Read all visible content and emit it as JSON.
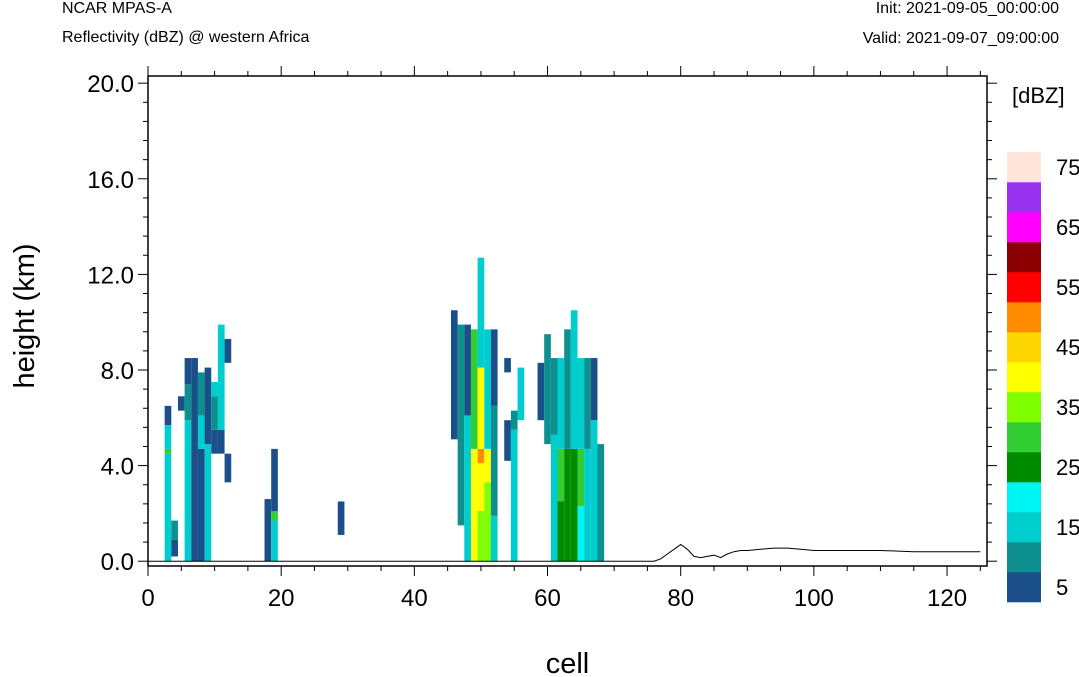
{
  "header": {
    "left_title": "NCAR MPAS-A",
    "left_subtitle": "Reflectivity (dBZ) @ western Africa",
    "right_init": "Init: 2021-09-05_00:00:00",
    "right_valid": "Valid: 2021-09-07_09:00:00"
  },
  "chart_data": {
    "type": "heatmap",
    "xlabel": "cell",
    "ylabel": "height (km)",
    "xlim": [
      0,
      126
    ],
    "ylim": [
      -0.2,
      20.3
    ],
    "xticks": [
      0,
      20,
      40,
      60,
      80,
      100,
      120
    ],
    "xtick_labels": [
      "0",
      "20",
      "40",
      "60",
      "80",
      "100",
      "120"
    ],
    "yticks": [
      0,
      4,
      8,
      12,
      16,
      20
    ],
    "ytick_labels": [
      "0.0",
      "4.0",
      "8.0",
      "12.0",
      "16.0",
      "20.0"
    ],
    "colorbar": {
      "units": "[dBZ]",
      "levels": [
        5,
        10,
        15,
        20,
        25,
        30,
        35,
        40,
        45,
        50,
        55,
        60,
        65,
        70,
        75
      ],
      "labels": [
        "5",
        "15",
        "25",
        "35",
        "45",
        "55",
        "65",
        "75"
      ],
      "colors": [
        "#1a4f8a",
        "#0e8f8f",
        "#00cdcd",
        "#00f5f5",
        "#008b00",
        "#32cd32",
        "#7fff00",
        "#ffff00",
        "#ffd700",
        "#ff8c00",
        "#ff0000",
        "#8b0000",
        "#ff00ff",
        "#9932ee",
        "#ffe4d9"
      ]
    },
    "columns": [
      {
        "x": 3,
        "segments": [
          [
            0,
            4.5,
            15
          ],
          [
            4.5,
            4.7,
            30
          ],
          [
            4.7,
            5.7,
            15
          ],
          [
            5.7,
            6.5,
            5
          ]
        ]
      },
      {
        "x": 4,
        "segments": [
          [
            0.2,
            0.9,
            5
          ],
          [
            0.9,
            1.7,
            10
          ]
        ]
      },
      {
        "x": 5,
        "segments": [
          [
            6.3,
            6.9,
            5
          ]
        ]
      },
      {
        "x": 6,
        "segments": [
          [
            0,
            5.9,
            15
          ],
          [
            5.9,
            7.4,
            10
          ],
          [
            7.4,
            8.5,
            5
          ]
        ]
      },
      {
        "x": 7,
        "segments": [
          [
            0,
            4.9,
            5
          ],
          [
            4.9,
            8.5,
            5
          ]
        ]
      },
      {
        "x": 8,
        "segments": [
          [
            0,
            4.7,
            5
          ],
          [
            4.7,
            6.1,
            15
          ],
          [
            6.1,
            7.9,
            10
          ]
        ]
      },
      {
        "x": 9,
        "segments": [
          [
            0,
            4.9,
            15
          ],
          [
            4.9,
            8.1,
            5
          ]
        ]
      },
      {
        "x": 10,
        "segments": [
          [
            4.5,
            5.5,
            5
          ],
          [
            5.5,
            6.9,
            10
          ],
          [
            6.9,
            7.5,
            15
          ]
        ]
      },
      {
        "x": 11,
        "segments": [
          [
            4.5,
            5.5,
            5
          ],
          [
            5.5,
            9.9,
            15
          ]
        ]
      },
      {
        "x": 12,
        "segments": [
          [
            3.3,
            4.5,
            5
          ],
          [
            8.3,
            9.3,
            5
          ]
        ]
      },
      {
        "x": 18,
        "segments": [
          [
            0,
            2.6,
            5
          ]
        ]
      },
      {
        "x": 19,
        "segments": [
          [
            0,
            1.7,
            15
          ],
          [
            1.7,
            2.1,
            30
          ],
          [
            2.1,
            4.7,
            5
          ]
        ]
      },
      {
        "x": 29,
        "segments": [
          [
            1.1,
            2.5,
            5
          ]
        ]
      },
      {
        "x": 46,
        "segments": [
          [
            5.1,
            10.5,
            5
          ]
        ]
      },
      {
        "x": 47,
        "segments": [
          [
            1.5,
            4.9,
            10
          ],
          [
            4.9,
            9.9,
            10
          ]
        ]
      },
      {
        "x": 48,
        "segments": [
          [
            0,
            6.1,
            15
          ],
          [
            6.1,
            9.9,
            5
          ]
        ]
      },
      {
        "x": 49,
        "segments": [
          [
            0,
            3.3,
            40
          ],
          [
            3.3,
            4.7,
            40
          ],
          [
            4.7,
            9.7,
            30
          ]
        ]
      },
      {
        "x": 50,
        "segments": [
          [
            0,
            2.1,
            35
          ],
          [
            2.1,
            4.1,
            40
          ],
          [
            4.1,
            4.7,
            50
          ],
          [
            4.7,
            8.1,
            40
          ],
          [
            8.1,
            12.7,
            15
          ]
        ]
      },
      {
        "x": 51,
        "segments": [
          [
            0,
            3.3,
            35
          ],
          [
            3.3,
            4.7,
            40
          ],
          [
            4.7,
            9.7,
            15
          ]
        ]
      },
      {
        "x": 52,
        "segments": [
          [
            0,
            1.9,
            15
          ],
          [
            1.9,
            6.5,
            10
          ],
          [
            6.5,
            9.7,
            5
          ]
        ]
      },
      {
        "x": 54,
        "segments": [
          [
            4.2,
            5.9,
            5
          ],
          [
            7.9,
            8.5,
            5
          ]
        ]
      },
      {
        "x": 55,
        "segments": [
          [
            0,
            5.5,
            15
          ],
          [
            5.5,
            6.3,
            10
          ]
        ]
      },
      {
        "x": 56,
        "segments": [
          [
            5.9,
            8.1,
            15
          ]
        ]
      },
      {
        "x": 59,
        "segments": [
          [
            5.9,
            8.3,
            5
          ]
        ]
      },
      {
        "x": 60,
        "segments": [
          [
            4.9,
            9.5,
            10
          ]
        ]
      },
      {
        "x": 61,
        "segments": [
          [
            0,
            5.3,
            15
          ],
          [
            5.3,
            8.5,
            10
          ]
        ]
      },
      {
        "x": 62,
        "segments": [
          [
            0,
            2.5,
            25
          ],
          [
            2.5,
            4.7,
            30
          ],
          [
            4.7,
            8.5,
            15
          ]
        ]
      },
      {
        "x": 63,
        "segments": [
          [
            0,
            4.7,
            25
          ],
          [
            4.7,
            9.7,
            10
          ]
        ]
      },
      {
        "x": 64,
        "segments": [
          [
            0,
            4.7,
            25
          ],
          [
            4.7,
            10.5,
            15
          ]
        ]
      },
      {
        "x": 65,
        "segments": [
          [
            0,
            2.3,
            20
          ],
          [
            2.3,
            4.7,
            30
          ],
          [
            4.7,
            8.5,
            15
          ]
        ]
      },
      {
        "x": 66,
        "segments": [
          [
            0,
            4.7,
            15
          ],
          [
            4.7,
            8.5,
            10
          ]
        ]
      },
      {
        "x": 67,
        "segments": [
          [
            0,
            5.9,
            15
          ],
          [
            5.9,
            8.5,
            5
          ]
        ]
      },
      {
        "x": 68,
        "segments": [
          [
            0,
            4.9,
            10
          ]
        ]
      }
    ],
    "terrain": {
      "x": [
        0,
        76,
        77,
        78,
        79,
        80,
        81,
        82,
        83,
        84,
        85,
        86,
        87,
        88,
        89,
        90,
        92,
        94,
        96,
        98,
        100,
        105,
        110,
        115,
        120,
        125
      ],
      "y": [
        0,
        0,
        0.1,
        0.3,
        0.5,
        0.7,
        0.5,
        0.2,
        0.15,
        0.2,
        0.25,
        0.15,
        0.3,
        0.4,
        0.45,
        0.45,
        0.5,
        0.55,
        0.55,
        0.5,
        0.45,
        0.45,
        0.45,
        0.4,
        0.4,
        0.4
      ]
    }
  }
}
